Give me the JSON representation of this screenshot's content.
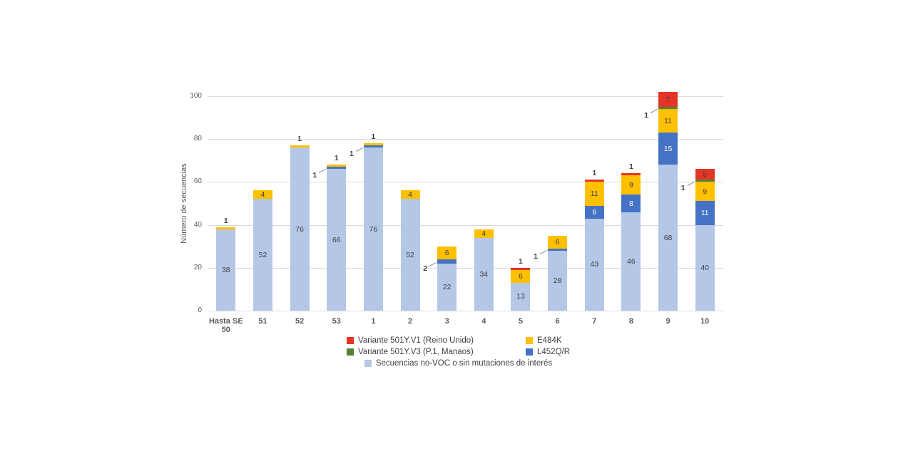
{
  "chart_data": {
    "type": "bar",
    "stacked": true,
    "title": "",
    "ylabel": "Número de secuencias",
    "xlabel": "",
    "ylim": [
      0,
      100
    ],
    "y_ticks": [
      0,
      20,
      40,
      60,
      80,
      100
    ],
    "grid": true,
    "legend_position": "bottom",
    "categories": [
      "Hasta SE 50",
      "51",
      "52",
      "53",
      "1",
      "2",
      "3",
      "4",
      "5",
      "6",
      "7",
      "8",
      "9",
      "10"
    ],
    "series": [
      {
        "name": "Secuencias no-VOC o sin mutaciones de interés",
        "color": "#b4c7e7",
        "values": [
          38,
          52,
          76,
          66,
          76,
          52,
          22,
          34,
          13,
          28,
          43,
          46,
          68,
          40
        ]
      },
      {
        "name": "L452Q/R",
        "color": "#4472c4",
        "values": [
          0,
          0,
          0,
          1,
          1,
          0,
          2,
          0,
          0,
          1,
          6,
          8,
          15,
          11
        ]
      },
      {
        "name": "E484K",
        "color": "#ffc000",
        "values": [
          1,
          4,
          1,
          1,
          1,
          4,
          6,
          4,
          6,
          6,
          11,
          9,
          11,
          9
        ]
      },
      {
        "name": "Variante 501Y.V3 (P.1, Manaos)",
        "color": "#548235",
        "values": [
          0,
          0,
          0,
          0,
          0,
          0,
          0,
          0,
          0,
          0,
          0,
          0,
          1,
          1
        ]
      },
      {
        "name": "Variante 501Y.V1 (Reino Unido)",
        "color": "#e43425",
        "values": [
          0,
          0,
          0,
          0,
          0,
          0,
          0,
          0,
          1,
          0,
          1,
          1,
          7,
          5
        ]
      }
    ]
  },
  "legend": {
    "rows": [
      [
        {
          "label": "Variante 501Y.V1 (Reino Unido)",
          "color": "#e43425"
        },
        {
          "label": "E484K",
          "color": "#ffc000"
        }
      ],
      [
        {
          "label": "Variante 501Y.V3 (P.1, Manaos)",
          "color": "#548235"
        },
        {
          "label": "L452Q/R",
          "color": "#4472c4"
        }
      ],
      [
        {
          "label": "Secuencias no-VOC o sin mutaciones de interés",
          "color": "#b4c7e7"
        }
      ]
    ]
  },
  "colors": {
    "gridline": "#d9d9d9",
    "axis_text": "#595959",
    "label_text": "#3f3f3f",
    "label_on_blue": "#ffffff"
  }
}
